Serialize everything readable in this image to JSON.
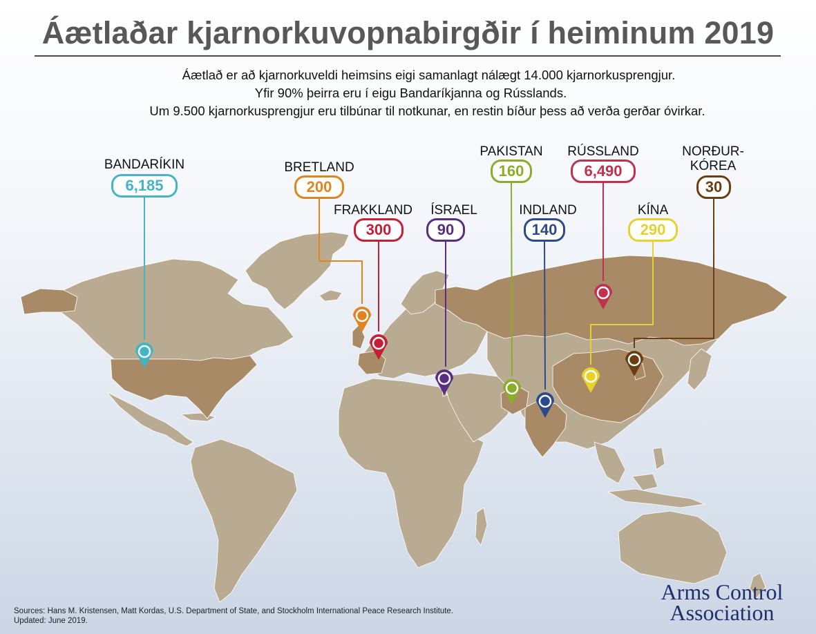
{
  "title": "Áætlaðar kjarnorkuvopnabirgðir í heiminum 2019",
  "intro": [
    "Áætlað er að kjarnorkuveldi heimsins eigi samanlagt nálægt 14.000 kjarnorkusprengjur.",
    "Yfir 90% þeirra eru í eigu Bandaríkjanna og Rússlands.",
    "Um 9.500 kjarnorkusprengjur eru tilbúnar til notkunar, en restin bíður þess að verða gerðar óvirkar."
  ],
  "countries": [
    {
      "name": "BANDARÍKIN",
      "value": "6,185",
      "color": "#43b4c6"
    },
    {
      "name": "BRETLAND",
      "value": "200",
      "color": "#e08420"
    },
    {
      "name": "FRAKKLAND",
      "value": "300",
      "color": "#c81e34"
    },
    {
      "name": "ÍSRAEL",
      "value": "90",
      "color": "#5a2d82"
    },
    {
      "name": "PAKISTAN",
      "value": "160",
      "color": "#8cac2c"
    },
    {
      "name": "INDLAND",
      "value": "140",
      "color": "#2b4a8c"
    },
    {
      "name": "RÚSSLAND",
      "value": "6,490",
      "color": "#c0314e"
    },
    {
      "name": "KÍNA",
      "value": "290",
      "color": "#e6d22a"
    },
    {
      "name": "NORÐUR-\nKÓREA",
      "value": "30",
      "color": "#6b3d12"
    }
  ],
  "map_colors": {
    "land": "#b9aa92",
    "highlight": "#a98a67",
    "border": "#ffffff"
  },
  "sources": [
    "Sources: Hans M. Kristensen, Matt Kordas, U.S. Department of State, and Stockholm International Peace Research Institute.",
    "Updated: June 2019."
  ],
  "logo": [
    "Arms Control",
    "Association"
  ]
}
